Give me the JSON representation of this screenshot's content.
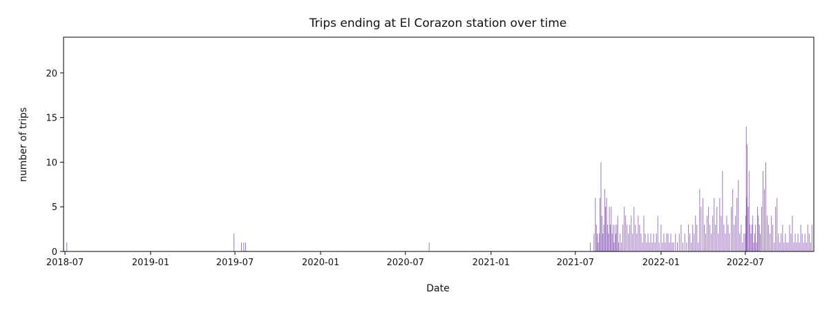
{
  "chart_data": {
    "type": "bar",
    "title": "Trips ending at El Corazon station over time",
    "xlabel": "Date",
    "ylabel": "number of trips",
    "ylim": [
      0,
      24
    ],
    "xlim": [
      "2018-06-28",
      "2022-11-25"
    ],
    "xticks": [
      "2018-07",
      "2019-01",
      "2019-07",
      "2020-01",
      "2020-07",
      "2021-01",
      "2021-07",
      "2022-01",
      "2022-07"
    ],
    "yticks": [
      0,
      5,
      10,
      15,
      20
    ],
    "grid": false,
    "bar_color": "#9467bd",
    "x": [
      "2018-07-05",
      "2019-06-29",
      "2019-07-15",
      "2019-07-20",
      "2019-07-24",
      "2020-08-21",
      "2021-08-02",
      "2021-08-10",
      "2021-08-13",
      "2021-08-15",
      "2021-08-17",
      "2021-08-19",
      "2021-08-21",
      "2021-08-23",
      "2021-08-25",
      "2021-08-27",
      "2021-08-29",
      "2021-08-31",
      "2021-09-02",
      "2021-09-04",
      "2021-09-06",
      "2021-09-08",
      "2021-09-10",
      "2021-09-12",
      "2021-09-14",
      "2021-09-16",
      "2021-09-18",
      "2021-09-20",
      "2021-09-22",
      "2021-09-24",
      "2021-09-26",
      "2021-09-28",
      "2021-09-30",
      "2021-10-02",
      "2021-10-05",
      "2021-10-08",
      "2021-10-11",
      "2021-10-14",
      "2021-10-17",
      "2021-10-20",
      "2021-10-23",
      "2021-10-26",
      "2021-10-29",
      "2021-11-01",
      "2021-11-04",
      "2021-11-07",
      "2021-11-10",
      "2021-11-13",
      "2021-11-16",
      "2021-11-19",
      "2021-11-22",
      "2021-11-25",
      "2021-11-28",
      "2021-12-01",
      "2021-12-04",
      "2021-12-07",
      "2021-12-10",
      "2021-12-13",
      "2021-12-16",
      "2021-12-19",
      "2021-12-22",
      "2021-12-25",
      "2021-12-28",
      "2022-01-01",
      "2022-01-04",
      "2022-01-07",
      "2022-01-10",
      "2022-01-13",
      "2022-01-16",
      "2022-01-19",
      "2022-01-22",
      "2022-01-25",
      "2022-01-28",
      "2022-02-01",
      "2022-02-05",
      "2022-02-09",
      "2022-02-13",
      "2022-02-17",
      "2022-02-21",
      "2022-02-25",
      "2022-03-01",
      "2022-03-04",
      "2022-03-07",
      "2022-03-10",
      "2022-03-13",
      "2022-03-16",
      "2022-03-19",
      "2022-03-22",
      "2022-03-25",
      "2022-03-28",
      "2022-04-01",
      "2022-04-04",
      "2022-04-07",
      "2022-04-10",
      "2022-04-13",
      "2022-04-16",
      "2022-04-19",
      "2022-04-22",
      "2022-04-25",
      "2022-04-28",
      "2022-05-01",
      "2022-05-04",
      "2022-05-07",
      "2022-05-10",
      "2022-05-13",
      "2022-05-16",
      "2022-05-19",
      "2022-05-22",
      "2022-05-25",
      "2022-05-28",
      "2022-06-01",
      "2022-06-04",
      "2022-06-07",
      "2022-06-10",
      "2022-06-13",
      "2022-06-16",
      "2022-06-19",
      "2022-06-22",
      "2022-06-25",
      "2022-06-28",
      "2022-07-01",
      "2022-07-02",
      "2022-07-03",
      "2022-07-04",
      "2022-07-05",
      "2022-07-07",
      "2022-07-09",
      "2022-07-11",
      "2022-07-13",
      "2022-07-15",
      "2022-07-17",
      "2022-07-19",
      "2022-07-21",
      "2022-07-23",
      "2022-07-25",
      "2022-07-27",
      "2022-07-29",
      "2022-07-31",
      "2022-08-02",
      "2022-08-05",
      "2022-08-08",
      "2022-08-11",
      "2022-08-14",
      "2022-08-17",
      "2022-08-20",
      "2022-08-23",
      "2022-08-26",
      "2022-08-29",
      "2022-09-01",
      "2022-09-04",
      "2022-09-07",
      "2022-09-10",
      "2022-09-13",
      "2022-09-16",
      "2022-09-19",
      "2022-09-22",
      "2022-09-25",
      "2022-09-28",
      "2022-10-01",
      "2022-10-04",
      "2022-10-07",
      "2022-10-10",
      "2022-10-13",
      "2022-10-16",
      "2022-10-19",
      "2022-10-22",
      "2022-10-25",
      "2022-10-28",
      "2022-10-31",
      "2022-11-03",
      "2022-11-06",
      "2022-11-09",
      "2022-11-12",
      "2022-11-15",
      "2022-11-18",
      "2022-11-21"
    ],
    "values": [
      1,
      2,
      1,
      1,
      1,
      1,
      1,
      2,
      6,
      3,
      2,
      1,
      2,
      6,
      10,
      4,
      2,
      3,
      7,
      5,
      6,
      3,
      2,
      5,
      3,
      5,
      2,
      3,
      1,
      3,
      2,
      3,
      4,
      1,
      2,
      1,
      3,
      5,
      4,
      3,
      2,
      3,
      4,
      2,
      5,
      3,
      2,
      4,
      3,
      2,
      1,
      4,
      2,
      1,
      2,
      1,
      2,
      1,
      2,
      1,
      2,
      4,
      1,
      3,
      1,
      2,
      1,
      2,
      2,
      1,
      2,
      1,
      1,
      2,
      1,
      2,
      3,
      1,
      2,
      1,
      3,
      2,
      1,
      3,
      2,
      4,
      3,
      1,
      7,
      5,
      6,
      3,
      2,
      4,
      5,
      3,
      2,
      4,
      6,
      3,
      5,
      2,
      6,
      4,
      9,
      3,
      2,
      4,
      3,
      2,
      5,
      7,
      3,
      4,
      6,
      8,
      2,
      3,
      1,
      2,
      2,
      4,
      14,
      6,
      12,
      5,
      9,
      3,
      2,
      3,
      4,
      1,
      2,
      3,
      1,
      5,
      4,
      3,
      2,
      5,
      9,
      7,
      10,
      4,
      3,
      2,
      4,
      3,
      1,
      5,
      6,
      2,
      1,
      2,
      3,
      1,
      2,
      1,
      1,
      3,
      2,
      4,
      1,
      2,
      1,
      2,
      1,
      3,
      2,
      1,
      2,
      1,
      3,
      2,
      1,
      3
    ]
  }
}
